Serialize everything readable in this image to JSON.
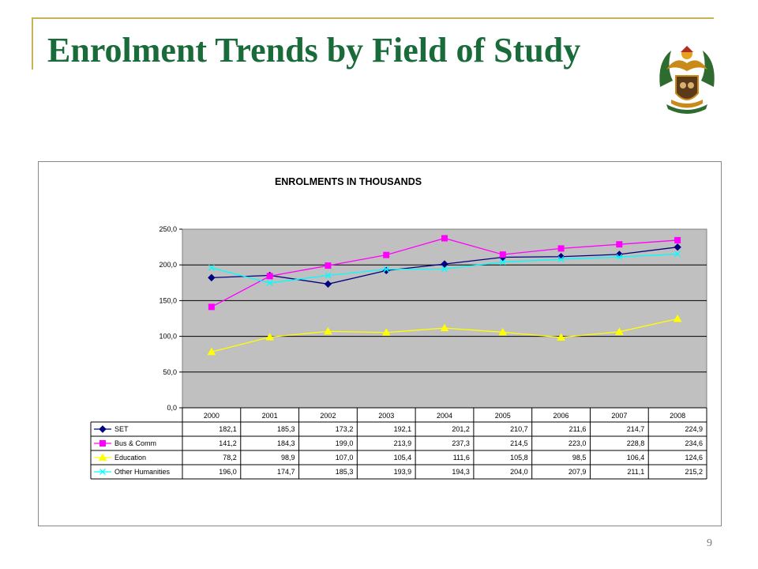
{
  "slide": {
    "title": "Enrolment Trends by Field of Study",
    "page_number": "9"
  },
  "chart_data": {
    "type": "line",
    "title": "ENROLMENTS IN THOUSANDS",
    "categories": [
      "2000",
      "2001",
      "2002",
      "2003",
      "2004",
      "2005",
      "2006",
      "2007",
      "2008"
    ],
    "ylim": [
      0,
      250
    ],
    "yticks": [
      "0,0",
      "50,0",
      "100,0",
      "150,0",
      "200,0",
      "250,0"
    ],
    "grid": true,
    "plot_background": "#c0c0c0",
    "legend": "data-table",
    "series": [
      {
        "name": "SET",
        "color": "#000080",
        "marker": "diamond",
        "values": [
          182.1,
          185.3,
          173.2,
          192.1,
          201.2,
          210.7,
          211.6,
          214.7,
          224.9
        ],
        "labels": [
          "182,1",
          "185,3",
          "173,2",
          "192,1",
          "201,2",
          "210,7",
          "211,6",
          "214,7",
          "224,9"
        ]
      },
      {
        "name": "Bus & Comm",
        "color": "#ff00ff",
        "marker": "square",
        "values": [
          141.2,
          184.3,
          199.0,
          213.9,
          237.3,
          214.5,
          223.0,
          228.8,
          234.6
        ],
        "labels": [
          "141,2",
          "184,3",
          "199,0",
          "213,9",
          "237,3",
          "214,5",
          "223,0",
          "228,8",
          "234,6"
        ]
      },
      {
        "name": "Education",
        "color": "#ffff00",
        "marker": "triangle",
        "values": [
          78.2,
          98.9,
          107.0,
          105.4,
          111.6,
          105.8,
          98.5,
          106.4,
          124.6
        ],
        "labels": [
          "78,2",
          "98,9",
          "107,0",
          "105,4",
          "111,6",
          "105,8",
          "98,5",
          "106,4",
          "124,6"
        ]
      },
      {
        "name": "Other Humanities",
        "color": "#00ffff",
        "marker": "x",
        "values": [
          196.0,
          174.7,
          185.3,
          193.9,
          194.3,
          204.0,
          207.9,
          211.1,
          215.2
        ],
        "labels": [
          "196,0",
          "174,7",
          "185,3",
          "193,9",
          "194,3",
          "204,0",
          "207,9",
          "211,1",
          "215,2"
        ]
      }
    ]
  }
}
